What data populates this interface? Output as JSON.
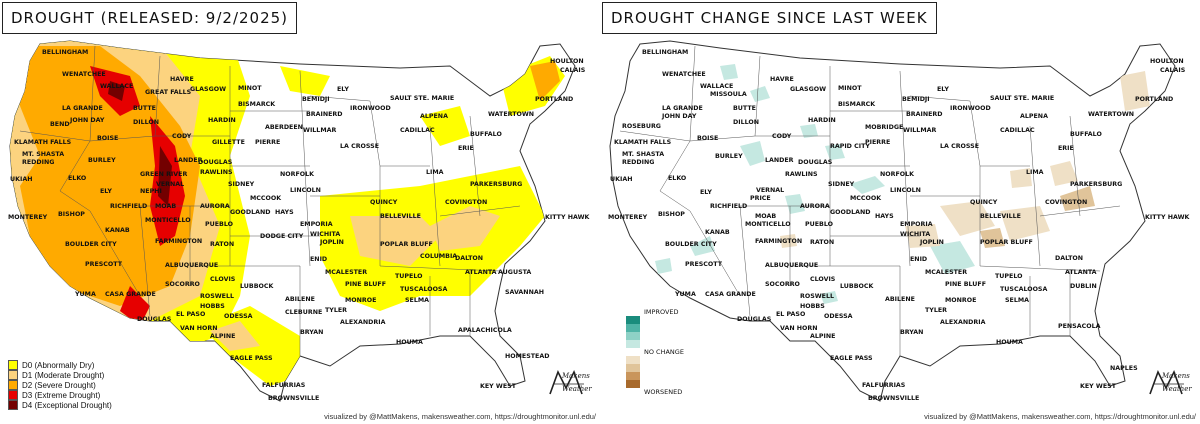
{
  "left": {
    "title": "DROUGHT (RELEASED: 9/2/2025)",
    "legend": [
      {
        "code": "D0",
        "label": "D0 (Abnormally Dry)",
        "color": "#ffff00"
      },
      {
        "code": "D1",
        "label": "D1 (Moderate Drought)",
        "color": "#fcd37f"
      },
      {
        "code": "D2",
        "label": "D2 (Severe Drought)",
        "color": "#ffaa00"
      },
      {
        "code": "D3",
        "label": "D3 (Extreme Drought)",
        "color": "#e60000"
      },
      {
        "code": "D4",
        "label": "D4 (Exceptional Drought)",
        "color": "#730000"
      }
    ],
    "credit": "visualized by @MattMakens, makensweather.com, https://droughtmonitor.unl.edu/"
  },
  "right": {
    "title": "DROUGHT CHANGE SINCE LAST WEEK",
    "legend": {
      "improved_label": "IMPROVED",
      "no_change_label": "NO CHANGE",
      "worsened_label": "WORSENED",
      "improved_colors": [
        "#1a8c7d",
        "#4fb3a6",
        "#8ed1c6",
        "#c5e8e1"
      ],
      "no_change_color": "#ffffff",
      "worsened_colors": [
        "#efe0c6",
        "#e0c49a",
        "#c9955b",
        "#a86a2c"
      ]
    },
    "credit": "visualized by @MattMakens, makensweather.com, https://droughtmonitor.unl.edu/"
  },
  "brand": {
    "line1": "Makens",
    "line2": "Weather"
  },
  "cities_left": [
    "BELLINGHAM",
    "WENATCHEE",
    "WALLACE",
    "GREAT FALLS",
    "HAVRE",
    "GLASGOW",
    "MINOT",
    "BISMARCK",
    "BEMIDJI",
    "ELY",
    "SAULT STE. MARIE",
    "HOULTON",
    "CALAIS",
    "PORTLAND",
    "LA GRANDE",
    "BUTTE",
    "DILLON",
    "HARDIN",
    "BRAINERD",
    "IRONWOOD",
    "ALPENA",
    "JOHN DAY",
    "BEND",
    "BOISE",
    "CODY",
    "ABERDEEN",
    "WILLMAR",
    "CADILLAC",
    "WATERTOWN",
    "BUFFALO",
    "KLAMATH FALLS",
    "MT. SHASTA",
    "REDDING",
    "GILLETTE",
    "PIERRE",
    "LA CROSSE",
    "ERIE",
    "BURLEY",
    "LANDER",
    "DOUGLAS",
    "UKIAH",
    "ELKO",
    "GREEN RIVER",
    "RAWLINS",
    "NORFOLK",
    "LIMA",
    "PARKERSBURG",
    "VERNAL",
    "SIDNEY",
    "ELY",
    "NEPHI",
    "LINCOLN",
    "MONTEREY",
    "BISHOP",
    "RICHFIELD",
    "MOAB",
    "AURORA",
    "MCCOOK",
    "QUINCY",
    "COVINGTON",
    "KITTY HAWK",
    "GOODLAND",
    "HAYS",
    "BELLEVILLE",
    "MONTICELLO",
    "PUEBLO",
    "EMPORIA",
    "KANAB",
    "WICHITA",
    "JOPLIN",
    "POPLAR BLUFF",
    "BOULDER CITY",
    "FARMINGTON",
    "DODGE CITY",
    "RATON",
    "COLUMBIA",
    "ENID",
    "ATLANTA",
    "AUGUSTA",
    "PRESCOTT",
    "ALBUQUERQUE",
    "MCALESTER",
    "TUPELO",
    "DALTON",
    "CLOVIS",
    "PINE BLUFF",
    "SAVANNAH",
    "SOCORRO",
    "LUBBOCK",
    "TUSCALOOSA",
    "YUMA",
    "CASA GRANDE",
    "ROSWELL",
    "ABILENE",
    "MONROE",
    "SELMA",
    "HOBBS",
    "CLEBURNE",
    "TYLER",
    "DOUGLAS",
    "EL PASO",
    "ODESSA",
    "ALEXANDRIA",
    "VAN HORN",
    "BRYAN",
    "APALACHICOLA",
    "ALPINE",
    "HOUMA",
    "EAGLE PASS",
    "HOMESTEAD",
    "FALFURRIAS",
    "KEY WEST",
    "BROWNSVILLE"
  ],
  "cities_right": [
    "BELLINGHAM",
    "WENATCHEE",
    "WALLACE",
    "MISSOULA",
    "HAVRE",
    "GLASGOW",
    "MINOT",
    "BISMARCK",
    "BEMIDJI",
    "ELY",
    "SAULT STE. MARIE",
    "HOULTON",
    "CALAIS",
    "PORTLAND",
    "LA GRANDE",
    "JOHN DAY",
    "BUTTE",
    "DILLON",
    "HARDIN",
    "BRAINERD",
    "IRONWOOD",
    "ALPENA",
    "ROSEBURG",
    "BOISE",
    "CODY",
    "MOBRIDGE",
    "WILLMAR",
    "CADILLAC",
    "WATERTOWN",
    "BUFFALO",
    "KLAMATH FALLS",
    "MT. SHASTA",
    "REDDING",
    "RAPID CITY",
    "PIERRE",
    "LA CROSSE",
    "ERIE",
    "BURLEY",
    "LANDER",
    "DOUGLAS",
    "UKIAH",
    "ELKO",
    "RAWLINS",
    "NORFOLK",
    "LIMA",
    "PARKERSBURG",
    "SIDNEY",
    "VERNAL",
    "LINCOLN",
    "ELY",
    "PRICE",
    "QUINCY",
    "MONTEREY",
    "BISHOP",
    "RICHFIELD",
    "AURORA",
    "MCCOOK",
    "COVINGTON",
    "KITTY HAWK",
    "MOAB",
    "GOODLAND",
    "HAYS",
    "EMPORIA",
    "BELLEVILLE",
    "MONTICELLO",
    "PUEBLO",
    "WICHITA",
    "KANAB",
    "JOPLIN",
    "POPLAR BLUFF",
    "BOULDER CITY",
    "FARMINGTON",
    "RATON",
    "ENID",
    "DALTON",
    "ATLANTA",
    "PRESCOTT",
    "ALBUQUERQUE",
    "MCALESTER",
    "TUPELO",
    "CLOVIS",
    "PINE BLUFF",
    "SOCORRO",
    "LUBBOCK",
    "TUSCALOOSA",
    "DUBLIN",
    "YUMA",
    "CASA GRANDE",
    "ROSWELL",
    "ABILENE",
    "MONROE",
    "SELMA",
    "HOBBS",
    "TYLER",
    "DOUGLAS",
    "EL PASO",
    "ODESSA",
    "ALEXANDRIA",
    "VAN HORN",
    "BRYAN",
    "PENSACOLA",
    "ALPINE",
    "HOUMA",
    "EAGLE PASS",
    "NAPLES",
    "FALFURRIAS",
    "KEY WEST",
    "BROWNSVILLE"
  ]
}
